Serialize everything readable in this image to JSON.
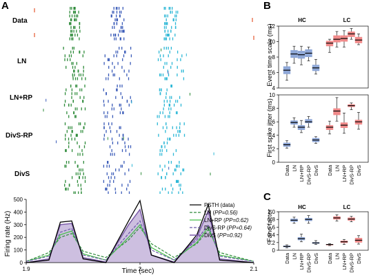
{
  "panels": {
    "a": "A",
    "b": "B",
    "c": "C"
  },
  "raster_rows": [
    "Data",
    "LN",
    "LN+RP",
    "DivS-RP",
    "DivS"
  ],
  "colors": {
    "data": "#e4572e",
    "ln": "#2e8b3a",
    "rp": "#3a5bb8",
    "divs_rp": "#2bb7d6",
    "blue_box": "#8fa8d8",
    "red_box": "#f08a8a",
    "divs_fill": "#cdbfe0",
    "divs_line": "#7a5aa8"
  },
  "psth": {
    "ylabel": "Firing rate (Hz)",
    "xlabel": "Time (sec)",
    "yticks": [
      "0",
      "100",
      "200",
      "300",
      "400",
      "500"
    ],
    "xticks": [
      "1.9",
      "2",
      "2.1"
    ],
    "legend": [
      {
        "label": "PSTH (data)",
        "pp": ""
      },
      {
        "label": "LN (",
        "pp": "PP=0.56)"
      },
      {
        "label": "LN+RP (",
        "pp": "PP=0.62)"
      },
      {
        "label": "DivS-RP (",
        "pp": "PP=0.64)"
      },
      {
        "label": "DivS (",
        "pp": "PP=0.92)"
      }
    ]
  },
  "box_b_top": {
    "ylabel": "Event time scale (ms)",
    "yticks": [
      "4",
      "6",
      "8",
      "10",
      "12"
    ],
    "groups": [
      "HC",
      "LC"
    ]
  },
  "box_b_bottom": {
    "ylabel": "First spike jitter (ms)",
    "yticks": [
      "0",
      "2",
      "4",
      "6",
      "8",
      "10"
    ],
    "xcats": [
      "Data",
      "LN",
      "LN+RP",
      "DivS-RP",
      "DivS"
    ]
  },
  "box_c": {
    "ylabel": "Fano factor",
    "yticks": [
      "0",
      "0.2",
      "0.4",
      "0.6",
      "0.8",
      "1.0"
    ],
    "groups": [
      "HC",
      "LC"
    ],
    "xcats": [
      "Data",
      "LN",
      "LN+RP",
      "DivS-RP",
      "DivS"
    ]
  },
  "chart_data": [
    {
      "type": "line",
      "x": [
        1.9,
        1.92,
        1.93,
        1.94,
        1.95,
        1.97,
        1.99,
        2.0,
        2.01,
        2.03,
        2.05,
        2.06,
        2.07,
        2.1
      ],
      "series": [
        {
          "name": "PSTH (data)",
          "values": [
            0,
            20,
            320,
            330,
            30,
            0,
            330,
            490,
            60,
            0,
            220,
            460,
            20,
            0
          ]
        },
        {
          "name": "LN (PP=0.56)",
          "values": [
            10,
            80,
            200,
            230,
            90,
            40,
            180,
            280,
            150,
            40,
            150,
            260,
            80,
            10
          ]
        },
        {
          "name": "LN+RP (PP=0.62)",
          "values": [
            10,
            60,
            220,
            250,
            70,
            20,
            200,
            300,
            120,
            20,
            160,
            280,
            60,
            10
          ]
        },
        {
          "name": "DivS-RP (PP=0.64)",
          "values": [
            10,
            50,
            240,
            270,
            60,
            20,
            230,
            330,
            100,
            20,
            180,
            300,
            50,
            10
          ]
        },
        {
          "name": "DivS (PP=0.92)",
          "values": [
            0,
            30,
            300,
            310,
            40,
            5,
            300,
            420,
            60,
            5,
            200,
            410,
            30,
            0
          ]
        }
      ],
      "xlabel": "Time (sec)",
      "ylabel": "Firing rate (Hz)",
      "xlim": [
        1.9,
        2.1
      ],
      "ylim": [
        0,
        500
      ],
      "legend": "top-right"
    },
    {
      "type": "box",
      "ylabel": "Event time scale (ms)",
      "ylim": [
        4,
        12
      ],
      "categories": [
        "Data",
        "LN",
        "LN+RP",
        "DivS-RP",
        "DivS"
      ],
      "series": [
        {
          "name": "HC",
          "median": [
            6.3,
            8.4,
            8.3,
            8.5,
            6.6
          ],
          "q1": [
            5.8,
            7.9,
            7.8,
            8.0,
            6.2
          ],
          "q3": [
            6.8,
            8.9,
            8.8,
            9.0,
            7.0
          ],
          "min": [
            5.0,
            7.2,
            7.0,
            7.5,
            5.8
          ],
          "max": [
            7.3,
            9.4,
            9.4,
            9.3,
            7.7
          ]
        },
        {
          "name": "LC",
          "median": [
            9.8,
            10.3,
            10.4,
            11.0,
            10.2
          ],
          "q1": [
            9.4,
            9.9,
            10.0,
            10.6,
            9.8
          ],
          "q3": [
            10.1,
            10.8,
            10.8,
            11.3,
            10.6
          ],
          "min": [
            8.6,
            9.3,
            9.3,
            10.3,
            9.6
          ],
          "max": [
            10.3,
            11.3,
            11.4,
            11.7,
            11.0
          ]
        }
      ]
    },
    {
      "type": "box",
      "ylabel": "First spike jitter (ms)",
      "ylim": [
        0,
        10
      ],
      "categories": [
        "Data",
        "LN",
        "LN+RP",
        "DivS-RP",
        "DivS"
      ],
      "series": [
        {
          "name": "HC",
          "median": [
            2.6,
            5.9,
            5.2,
            6.0,
            3.3
          ],
          "q1": [
            2.3,
            5.6,
            4.8,
            5.8,
            3.0
          ],
          "q3": [
            2.9,
            6.2,
            5.5,
            6.4,
            3.6
          ],
          "min": [
            2.1,
            5.2,
            4.4,
            5.2,
            2.8
          ],
          "max": [
            3.2,
            6.6,
            6.2,
            6.8,
            3.8
          ]
        },
        {
          "name": "LC",
          "median": [
            5.2,
            7.6,
            5.5,
            8.4,
            6.0
          ],
          "q1": [
            4.8,
            7.0,
            5.1,
            8.2,
            5.6
          ],
          "q3": [
            5.5,
            8.0,
            5.9,
            8.6,
            6.3
          ],
          "min": [
            4.2,
            6.1,
            4.3,
            7.8,
            4.9
          ],
          "max": [
            6.1,
            9.6,
            7.3,
            8.8,
            7.4
          ]
        }
      ]
    },
    {
      "type": "box",
      "ylabel": "Fano factor",
      "ylim": [
        0,
        1.0
      ],
      "categories": [
        "Data",
        "LN",
        "LN+RP",
        "DivS-RP",
        "DivS"
      ],
      "series": [
        {
          "name": "HC",
          "median": [
            0.1,
            0.78,
            0.3,
            0.8,
            0.19
          ],
          "q1": [
            0.08,
            0.74,
            0.26,
            0.76,
            0.17
          ],
          "q3": [
            0.12,
            0.82,
            0.34,
            0.84,
            0.21
          ],
          "min": [
            0.06,
            0.7,
            0.22,
            0.7,
            0.15
          ],
          "max": [
            0.14,
            0.86,
            0.42,
            0.9,
            0.25
          ]
        },
        {
          "name": "LC",
          "median": [
            0.15,
            0.84,
            0.22,
            0.81,
            0.26
          ],
          "q1": [
            0.13,
            0.8,
            0.19,
            0.77,
            0.2
          ],
          "q3": [
            0.16,
            0.88,
            0.25,
            0.85,
            0.32
          ],
          "min": [
            0.12,
            0.76,
            0.15,
            0.74,
            0.16
          ],
          "max": [
            0.17,
            0.92,
            0.28,
            0.88,
            0.38
          ]
        }
      ]
    }
  ]
}
